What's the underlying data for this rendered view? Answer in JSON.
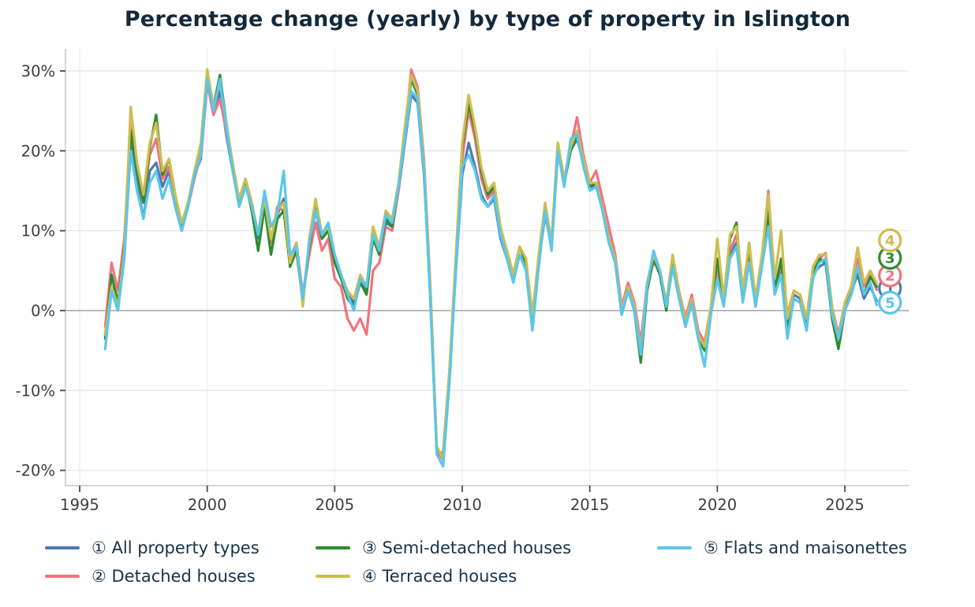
{
  "title": "Percentage change (yearly) by type of property in Islington",
  "chart_data": {
    "type": "line",
    "title": "Percentage change (yearly) by type of property in Islington",
    "xlabel": "",
    "ylabel": "",
    "x": {
      "start": 1996.0,
      "step": 0.25,
      "count": 122,
      "unit": "year"
    },
    "xlim": [
      1994.4,
      2027.5
    ],
    "ylim": [
      -22,
      32.8
    ],
    "x_ticks": [
      1995,
      2000,
      2005,
      2010,
      2015,
      2020,
      2025
    ],
    "x_tick_labels": [
      "1995",
      "2000",
      "2005",
      "2010",
      "2015",
      "2020",
      "2025"
    ],
    "y_ticks": [
      30,
      20,
      10,
      0,
      -10,
      -20
    ],
    "y_tick_labels": [
      "30%",
      "20%",
      "10%",
      "0%",
      "-10%",
      "-20%"
    ],
    "grid": true,
    "zero_line": true,
    "legend_position": "bottom",
    "end_marker_x": 2026.77,
    "series": [
      {
        "number": "1",
        "name": "All property types",
        "legend_label": "① All property types",
        "color": "#4d7ab0",
        "end_marker_value": 2.8,
        "values": [
          -3.0,
          3.0,
          0.5,
          7.0,
          21.0,
          16.0,
          11.5,
          17.5,
          18.5,
          15.5,
          17.5,
          13.0,
          10.0,
          13.0,
          17.0,
          19.0,
          28.5,
          24.5,
          27.5,
          22.0,
          17.5,
          13.5,
          16.0,
          13.0,
          9.0,
          13.5,
          9.0,
          12.0,
          14.0,
          6.0,
          8.0,
          1.5,
          8.0,
          12.5,
          9.0,
          10.5,
          6.5,
          4.0,
          2.0,
          1.0,
          4.0,
          2.5,
          9.0,
          7.5,
          11.0,
          10.5,
          15.0,
          21.0,
          27.0,
          26.0,
          17.0,
          2.0,
          -17.7,
          -18.5,
          -8.0,
          5.0,
          17.0,
          21.0,
          18.0,
          14.5,
          13.0,
          14.0,
          9.0,
          6.5,
          4.0,
          7.0,
          5.5,
          -1.0,
          6.0,
          12.0,
          8.0,
          20.0,
          16.0,
          20.0,
          21.5,
          18.5,
          15.5,
          15.5,
          13.0,
          8.5,
          6.5,
          0.0,
          3.0,
          0.5,
          -4.0,
          3.0,
          6.5,
          4.5,
          0.5,
          5.5,
          2.0,
          -1.5,
          1.5,
          -3.0,
          -4.0,
          0.0,
          4.5,
          1.0,
          7.0,
          8.5,
          2.0,
          7.5,
          1.0,
          6.0,
          12.0,
          3.0,
          5.0,
          -1.5,
          2.0,
          1.5,
          -1.5,
          4.5,
          5.5,
          6.0,
          0.0,
          -3.5,
          0.5,
          2.5,
          4.5,
          1.5,
          3.0,
          1.2
        ]
      },
      {
        "number": "2",
        "name": "Detached houses",
        "legend_label": "② Detached houses",
        "color": "#f0737f",
        "end_marker_value": 4.4,
        "values": [
          -2.0,
          6.0,
          2.5,
          9.0,
          23.5,
          18.5,
          14.0,
          19.5,
          21.5,
          16.5,
          18.0,
          14.0,
          10.5,
          13.0,
          16.5,
          19.5,
          28.5,
          24.5,
          26.5,
          22.5,
          18.0,
          13.5,
          16.5,
          13.5,
          9.5,
          13.0,
          8.5,
          13.0,
          12.5,
          6.5,
          8.5,
          2.0,
          7.0,
          11.0,
          7.5,
          9.0,
          4.0,
          3.0,
          -1.0,
          -2.5,
          -1.0,
          -3.0,
          5.0,
          6.0,
          10.5,
          10.0,
          15.0,
          22.0,
          30.2,
          28.0,
          19.0,
          3.0,
          -17.5,
          -18.7,
          -8.5,
          5.5,
          19.0,
          25.0,
          21.5,
          16.5,
          14.0,
          15.0,
          9.5,
          7.0,
          4.0,
          7.0,
          5.5,
          -0.5,
          6.5,
          12.5,
          8.0,
          19.5,
          16.5,
          20.5,
          24.2,
          19.5,
          16.0,
          17.5,
          14.0,
          10.5,
          7.0,
          0.5,
          3.5,
          1.0,
          -4.0,
          3.5,
          6.0,
          5.0,
          1.0,
          6.0,
          2.5,
          -1.0,
          2.0,
          -2.5,
          -4.0,
          0.5,
          5.0,
          1.5,
          7.5,
          9.5,
          2.5,
          8.0,
          1.5,
          6.5,
          15.0,
          3.5,
          5.5,
          -0.5,
          2.5,
          2.0,
          -1.0,
          5.0,
          6.5,
          7.2,
          0.5,
          -3.0,
          1.0,
          3.0,
          6.5,
          3.0,
          4.5,
          2.6
        ]
      },
      {
        "number": "3",
        "name": "Semi-detached houses",
        "legend_label": "③ Semi-detached houses",
        "color": "#2e8b2e",
        "end_marker_value": 6.6,
        "values": [
          -3.5,
          4.5,
          1.0,
          8.0,
          22.5,
          17.5,
          13.5,
          20.5,
          24.5,
          17.0,
          19.0,
          14.5,
          10.5,
          13.5,
          17.0,
          20.0,
          29.5,
          25.5,
          29.5,
          23.5,
          18.0,
          13.5,
          16.0,
          12.5,
          7.5,
          13.0,
          7.0,
          11.5,
          12.5,
          5.5,
          7.5,
          1.0,
          8.0,
          13.0,
          9.0,
          10.0,
          6.0,
          4.0,
          1.5,
          0.5,
          3.5,
          2.0,
          9.0,
          7.0,
          11.5,
          10.5,
          15.5,
          22.5,
          29.0,
          27.0,
          17.5,
          1.5,
          -17.5,
          -18.0,
          -7.5,
          6.5,
          20.5,
          26.0,
          22.5,
          17.5,
          14.5,
          15.5,
          10.0,
          7.5,
          4.5,
          8.0,
          6.0,
          -1.0,
          6.5,
          13.0,
          8.5,
          21.0,
          16.0,
          20.0,
          22.0,
          18.5,
          15.5,
          16.0,
          12.5,
          8.5,
          6.0,
          -0.5,
          2.5,
          0.0,
          -6.5,
          2.5,
          6.5,
          4.5,
          0.0,
          6.5,
          2.0,
          -2.0,
          1.0,
          -3.5,
          -5.0,
          0.0,
          6.5,
          1.0,
          9.0,
          11.0,
          1.5,
          8.5,
          0.5,
          6.0,
          13.0,
          2.5,
          6.5,
          -2.0,
          1.5,
          1.0,
          -2.0,
          4.5,
          6.5,
          6.0,
          -1.0,
          -4.8,
          0.0,
          2.0,
          5.0,
          2.0,
          4.2,
          3.0
        ]
      },
      {
        "number": "4",
        "name": "Terraced houses",
        "legend_label": "④ Terraced houses",
        "color": "#cebe4f",
        "end_marker_value": 8.8,
        "values": [
          -3.0,
          3.0,
          0.5,
          7.5,
          25.5,
          18.5,
          14.5,
          21.0,
          23.5,
          17.5,
          19.0,
          14.5,
          11.0,
          13.5,
          17.5,
          21.0,
          30.2,
          25.5,
          28.5,
          23.5,
          18.5,
          14.0,
          16.5,
          13.5,
          9.5,
          14.0,
          9.0,
          12.5,
          13.5,
          6.0,
          8.5,
          0.5,
          9.0,
          14.0,
          9.5,
          10.5,
          7.0,
          4.5,
          2.5,
          1.5,
          4.5,
          3.0,
          10.5,
          8.0,
          12.5,
          11.5,
          16.0,
          23.0,
          29.5,
          27.5,
          18.5,
          2.5,
          -17.0,
          -18.5,
          -7.5,
          7.0,
          21.0,
          27.0,
          23.0,
          18.0,
          15.0,
          16.0,
          10.5,
          7.5,
          4.5,
          8.0,
          6.5,
          -0.5,
          7.0,
          13.5,
          8.5,
          21.0,
          16.5,
          20.5,
          22.5,
          19.0,
          16.0,
          16.0,
          13.0,
          9.0,
          6.5,
          0.0,
          3.0,
          0.5,
          -5.0,
          3.5,
          7.0,
          5.0,
          1.0,
          7.0,
          2.5,
          -1.5,
          1.5,
          -3.0,
          -4.5,
          0.5,
          9.0,
          1.5,
          9.5,
          10.5,
          2.5,
          8.5,
          1.5,
          7.0,
          14.5,
          4.0,
          10.0,
          -1.0,
          2.5,
          2.0,
          -1.0,
          5.5,
          7.0,
          7.0,
          0.5,
          -3.5,
          1.0,
          3.0,
          7.9,
          3.5,
          5.0,
          3.4
        ]
      },
      {
        "number": "5",
        "name": "Flats and maisonettes",
        "legend_label": "⑤ Flats and maisonettes",
        "color": "#5bc6ea",
        "end_marker_value": 1.0,
        "values": [
          -4.8,
          2.5,
          0.0,
          6.5,
          20.0,
          15.0,
          11.5,
          16.0,
          17.5,
          14.0,
          16.5,
          13.0,
          10.0,
          13.0,
          17.0,
          19.5,
          29.0,
          25.0,
          29.0,
          23.0,
          17.5,
          13.0,
          15.5,
          13.0,
          9.5,
          15.0,
          10.5,
          12.0,
          17.5,
          7.0,
          8.0,
          1.5,
          8.5,
          12.5,
          9.5,
          11.0,
          7.0,
          4.5,
          2.0,
          0.0,
          4.0,
          3.0,
          9.5,
          7.5,
          12.0,
          11.0,
          15.5,
          21.5,
          27.5,
          26.5,
          17.5,
          1.0,
          -18.0,
          -19.5,
          -9.0,
          5.0,
          18.0,
          19.5,
          17.5,
          14.0,
          13.0,
          14.5,
          9.5,
          6.5,
          3.5,
          7.0,
          5.0,
          -2.5,
          5.5,
          12.5,
          7.5,
          20.0,
          15.5,
          21.5,
          22.0,
          18.0,
          15.0,
          15.5,
          12.5,
          8.5,
          6.0,
          -0.5,
          2.5,
          0.0,
          -5.5,
          3.0,
          7.5,
          5.0,
          0.5,
          5.5,
          1.5,
          -2.0,
          1.0,
          -3.5,
          -7.0,
          -0.5,
          4.0,
          0.5,
          6.5,
          8.0,
          1.0,
          6.0,
          0.5,
          5.5,
          10.5,
          2.0,
          4.5,
          -3.5,
          1.5,
          1.0,
          -2.5,
          4.0,
          6.0,
          6.5,
          -0.5,
          -3.5,
          0.0,
          2.0,
          5.5,
          2.0,
          3.5,
          0.7
        ]
      }
    ],
    "colors": {
      "title_text": "#12293c",
      "legend_text": "#15324b",
      "axis_text": "#3d3d3d",
      "grid": "#e8e8e8",
      "zero_line": "#b0b0b0",
      "panel_border": "#d4d4d4"
    }
  }
}
